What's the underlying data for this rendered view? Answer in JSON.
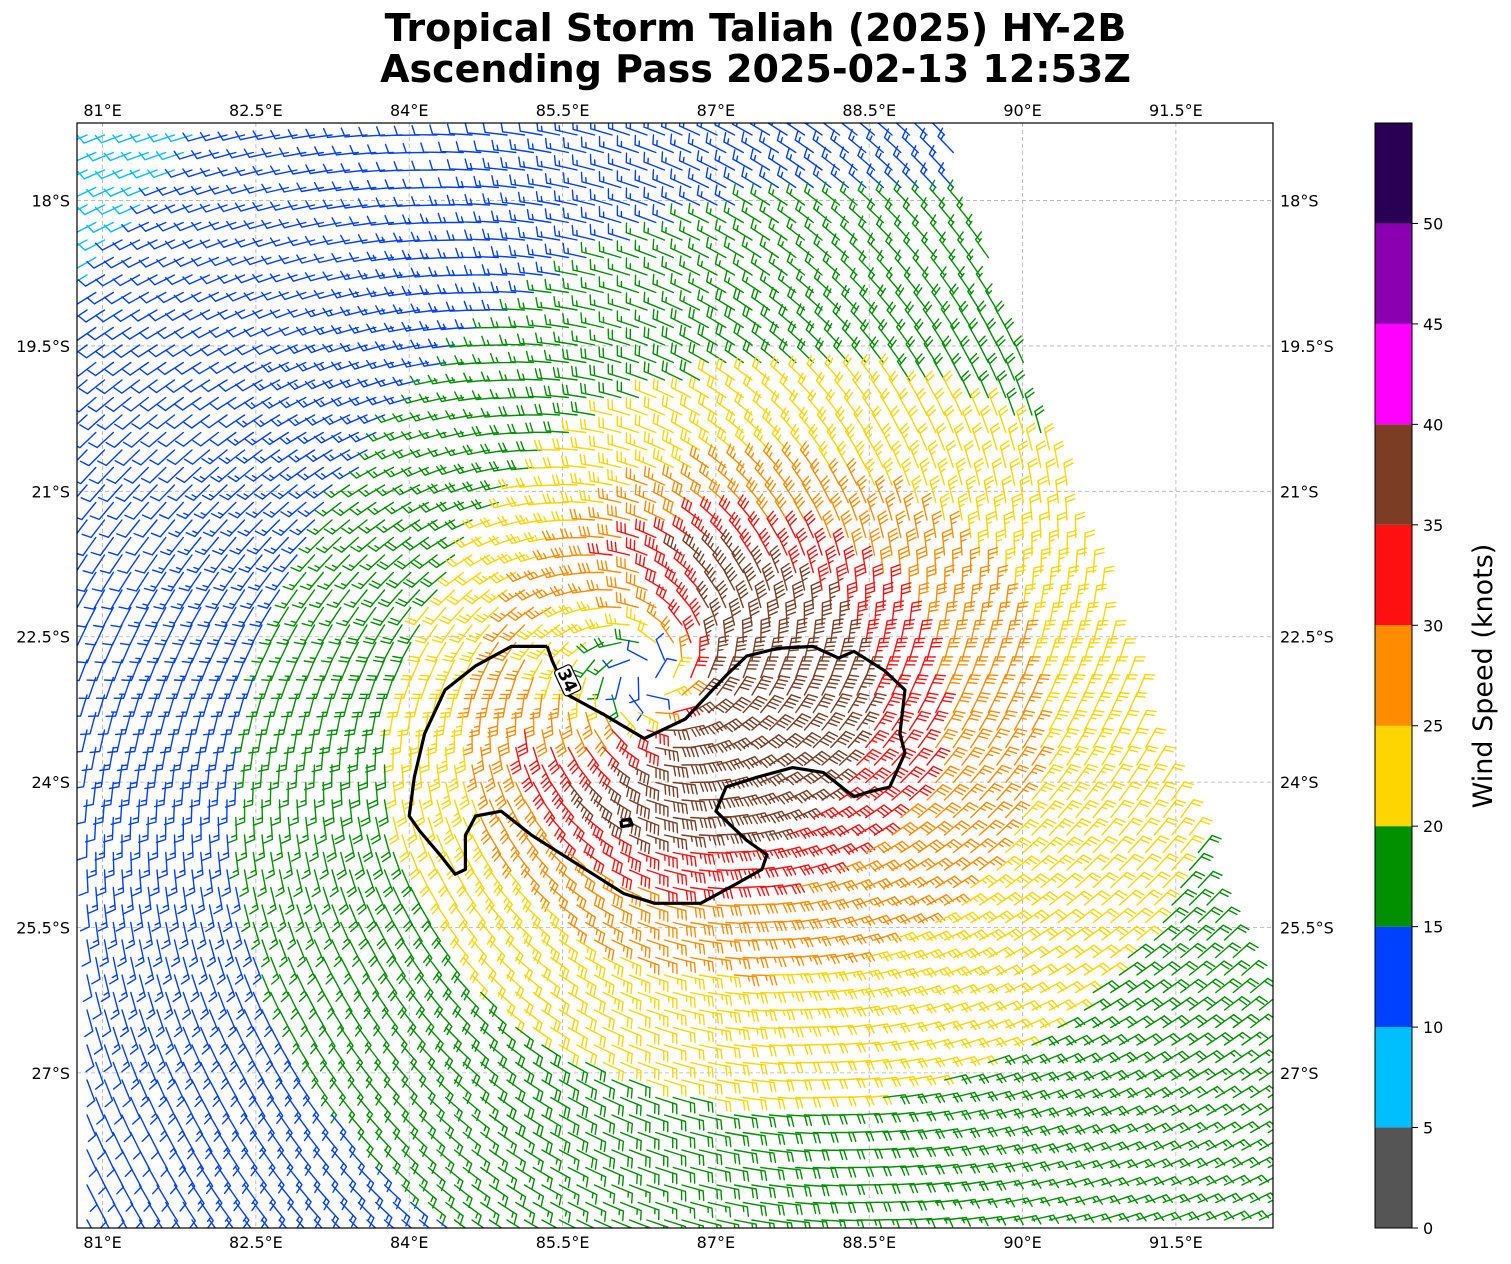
{
  "title": {
    "line1": "Tropical Storm Taliah (2025) HY-2B",
    "line2": "Ascending Pass 2025-02-13 12:53Z"
  },
  "map": {
    "lon_range": [
      80.75,
      92.45
    ],
    "lat_range": [
      -28.6,
      -17.2
    ],
    "lon_ticks": [
      {
        "value": 81.0,
        "label": "81°E"
      },
      {
        "value": 82.5,
        "label": "82.5°E"
      },
      {
        "value": 84.0,
        "label": "84°E"
      },
      {
        "value": 85.5,
        "label": "85.5°E"
      },
      {
        "value": 87.0,
        "label": "87°E"
      },
      {
        "value": 88.5,
        "label": "88.5°E"
      },
      {
        "value": 90.0,
        "label": "90°E"
      },
      {
        "value": 91.5,
        "label": "91.5°E"
      }
    ],
    "lat_ticks": [
      {
        "value": -18.0,
        "label": "18°S"
      },
      {
        "value": -19.5,
        "label": "19.5°S"
      },
      {
        "value": -21.0,
        "label": "21°S"
      },
      {
        "value": -22.5,
        "label": "22.5°S"
      },
      {
        "value": -24.0,
        "label": "24°S"
      },
      {
        "value": -25.5,
        "label": "25.5°S"
      },
      {
        "value": -27.0,
        "label": "27°S"
      }
    ],
    "storm_center": {
      "lon": 86.3,
      "lat": -22.9
    },
    "contour_label": "34",
    "contour_34kt": [
      [
        85.35,
        -22.6
      ],
      [
        85.4,
        -22.75
      ],
      [
        85.55,
        -23.1
      ],
      [
        85.9,
        -23.3
      ],
      [
        86.3,
        -23.55
      ],
      [
        86.7,
        -23.35
      ],
      [
        87.1,
        -22.9
      ],
      [
        87.3,
        -22.7
      ],
      [
        87.6,
        -22.62
      ],
      [
        87.95,
        -22.6
      ],
      [
        88.2,
        -22.72
      ],
      [
        88.35,
        -22.65
      ],
      [
        88.65,
        -22.85
      ],
      [
        88.85,
        -23.05
      ],
      [
        88.8,
        -23.5
      ],
      [
        88.85,
        -23.7
      ],
      [
        88.7,
        -24.05
      ],
      [
        88.5,
        -24.1
      ],
      [
        88.35,
        -24.15
      ],
      [
        88.05,
        -23.9
      ],
      [
        87.75,
        -23.85
      ],
      [
        87.4,
        -23.95
      ],
      [
        87.1,
        -24.05
      ],
      [
        87.0,
        -24.3
      ],
      [
        87.3,
        -24.6
      ],
      [
        87.5,
        -24.75
      ],
      [
        87.45,
        -24.9
      ],
      [
        87.2,
        -25.05
      ],
      [
        86.85,
        -25.25
      ],
      [
        86.4,
        -25.25
      ],
      [
        86.1,
        -25.15
      ],
      [
        85.8,
        -24.95
      ],
      [
        85.5,
        -24.75
      ],
      [
        85.2,
        -24.55
      ],
      [
        84.9,
        -24.3
      ],
      [
        84.65,
        -24.35
      ],
      [
        84.55,
        -24.55
      ],
      [
        84.55,
        -24.9
      ],
      [
        84.45,
        -24.95
      ],
      [
        84.3,
        -24.75
      ],
      [
        84.1,
        -24.5
      ],
      [
        84.0,
        -24.35
      ],
      [
        84.05,
        -23.95
      ],
      [
        84.15,
        -23.5
      ],
      [
        84.35,
        -23.05
      ],
      [
        84.65,
        -22.8
      ],
      [
        85.0,
        -22.6
      ],
      [
        85.35,
        -22.6
      ]
    ],
    "small_contour": [
      [
        86.07,
        -24.4
      ],
      [
        86.16,
        -24.38
      ],
      [
        86.18,
        -24.44
      ],
      [
        86.08,
        -24.46
      ],
      [
        86.07,
        -24.4
      ]
    ]
  },
  "colorbar": {
    "label": "Wind Speed (knots)",
    "ticks": [
      "0",
      "5",
      "10",
      "15",
      "20",
      "25",
      "30",
      "35",
      "40",
      "45",
      "50"
    ],
    "bins": [
      {
        "min": 0,
        "max": 5,
        "color": "#555555"
      },
      {
        "min": 5,
        "max": 10,
        "color": "#00bfff"
      },
      {
        "min": 10,
        "max": 15,
        "color": "#0040ff"
      },
      {
        "min": 15,
        "max": 20,
        "color": "#009000"
      },
      {
        "min": 20,
        "max": 25,
        "color": "#ffd500"
      },
      {
        "min": 25,
        "max": 30,
        "color": "#ff8c00"
      },
      {
        "min": 30,
        "max": 35,
        "color": "#ff1010"
      },
      {
        "min": 35,
        "max": 40,
        "color": "#7b3d24"
      },
      {
        "min": 40,
        "max": 45,
        "color": "#ff00ff"
      },
      {
        "min": 45,
        "max": 50,
        "color": "#8a00b0"
      },
      {
        "min": 50,
        "max": 55,
        "color": "#2a0055"
      }
    ]
  }
}
